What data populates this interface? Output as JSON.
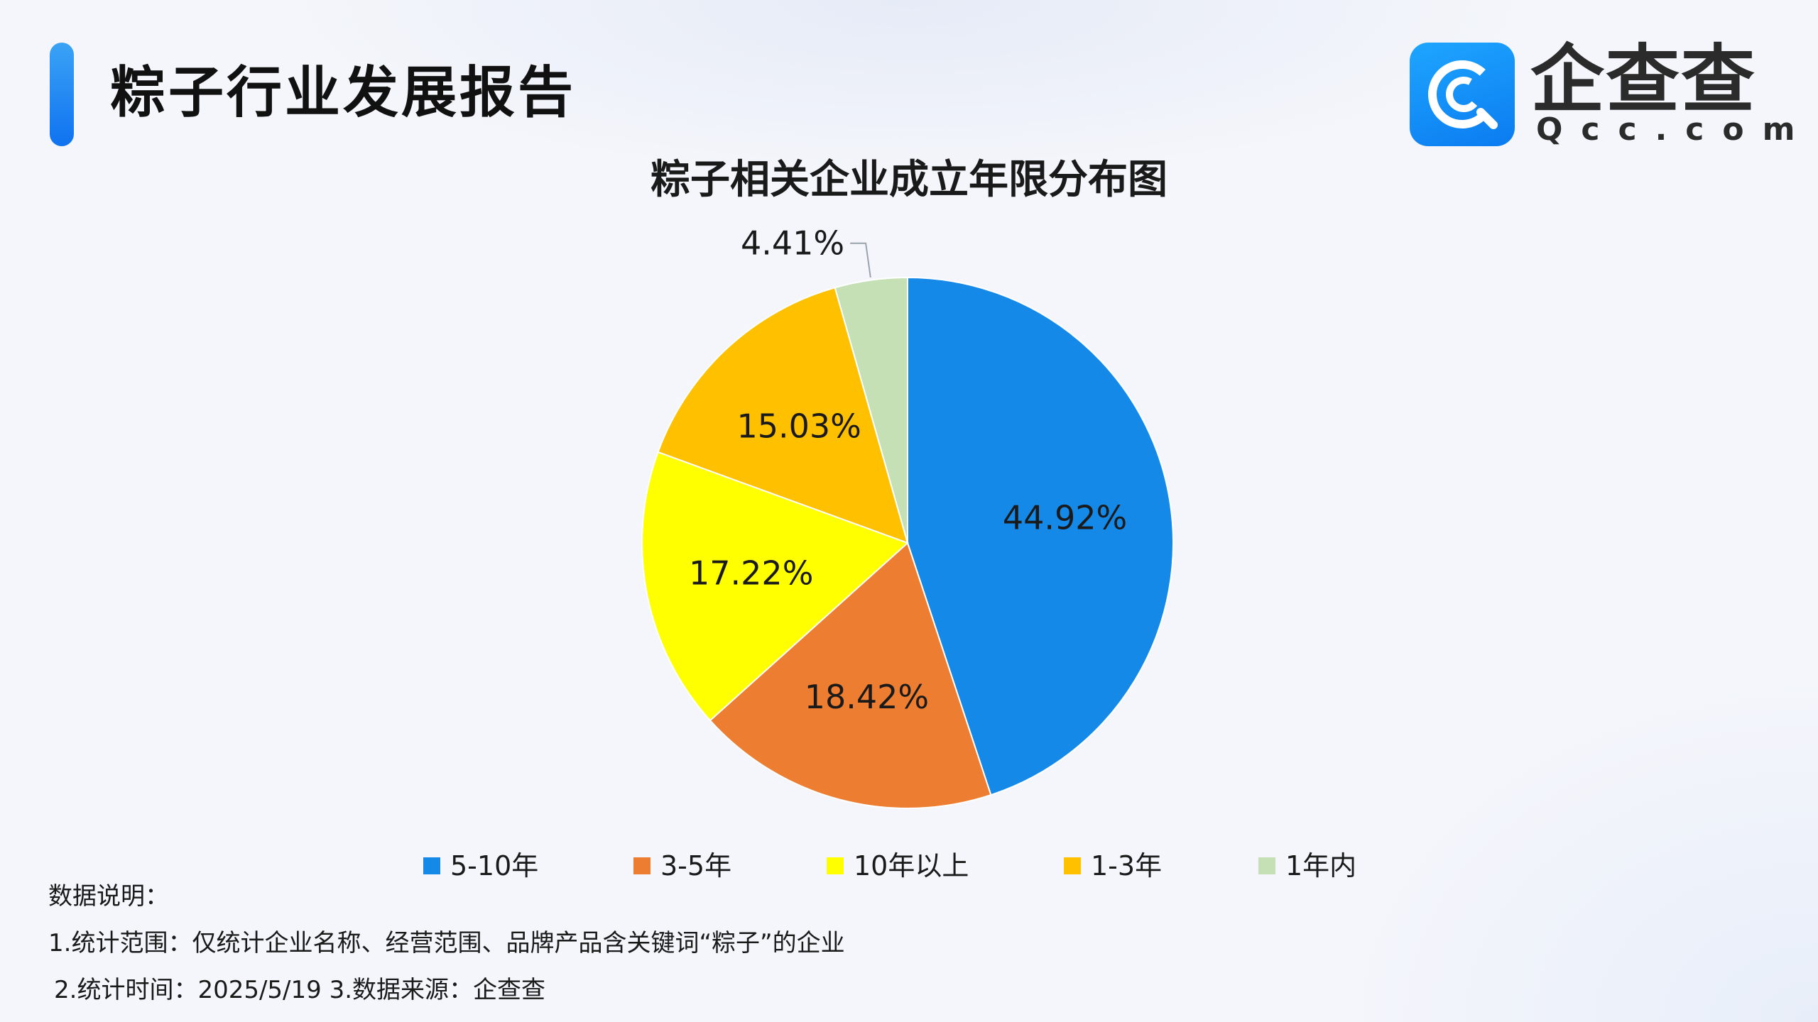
{
  "header": {
    "report_title": "粽子行业发展报告",
    "logo_cn": "企查查",
    "logo_en": "Qcc.com"
  },
  "chart_data": {
    "type": "pie",
    "title": "粽子相关企业成立年限分布图",
    "categories": [
      "5-10年",
      "3-5年",
      "10年以上",
      "1-3年",
      "1年内"
    ],
    "values": [
      44.92,
      18.42,
      17.22,
      15.03,
      4.41
    ],
    "labels": [
      "44.92%",
      "18.42%",
      "17.22%",
      "15.03%",
      "4.41%"
    ],
    "colors": [
      "#1589e8",
      "#ed7d31",
      "#ffff00",
      "#ffc000",
      "#c5e0b4"
    ],
    "start_angle": "12 o'clock, clockwise",
    "legend_position": "bottom"
  },
  "notes": {
    "heading": "数据说明：",
    "line1": "1.统计范围：仅统计企业名称、经营范围、品牌产品含关键词“粽子”的企业",
    "line2": "2.统计时间：2025/5/19    3.数据来源：企查查"
  }
}
